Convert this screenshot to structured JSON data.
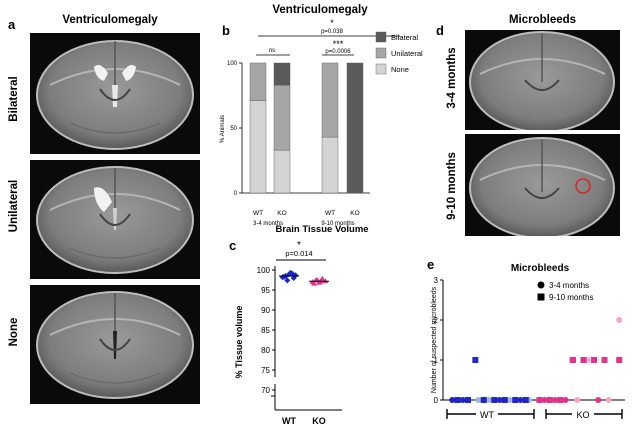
{
  "panels": {
    "a": {
      "letter": "a",
      "title": "Ventriculomegaly",
      "rows": [
        "Bilateral",
        "Unilateral",
        "None"
      ]
    },
    "b": {
      "letter": "b",
      "title": "Ventriculomegaly",
      "sig": {
        "top_star": "*",
        "top_p": "p=0.038",
        "ns": "ns",
        "stars": "***",
        "p_right": "p=0.0006"
      },
      "group_labels": [
        "3-4 months",
        "9-10 months"
      ]
    },
    "c": {
      "letter": "c",
      "title": "Brain Tissue Volume",
      "star": "*",
      "p": "p=0.014"
    },
    "d": {
      "letter": "d",
      "title": "Microbleeds",
      "rows": [
        "3-4 months",
        "9-10 months"
      ]
    },
    "e": {
      "letter": "e",
      "title": "Microbleeds",
      "legend": [
        "3-4 months",
        "9-10 months"
      ],
      "group_labels": [
        "WT",
        "KO"
      ]
    }
  },
  "colors": {
    "bilateral": "#5a5a5a",
    "unilateral": "#a6a6a6",
    "none": "#d4d4d4",
    "wt": "#1f27c8",
    "ko": "#e0338a",
    "ko_light": "#f5a6c8",
    "wt_light": "#9fb6de",
    "circle": "#d9262c"
  },
  "chart_data": [
    {
      "id": "b",
      "type": "bar",
      "stacked": true,
      "categories": [
        "WT",
        "KO",
        "WT",
        "KO"
      ],
      "group_labels": [
        "3-4 months",
        "9-10 months"
      ],
      "ylabel": "% Animals",
      "ylim": [
        0,
        100
      ],
      "yticks": [
        "0",
        "50",
        "100"
      ],
      "series": [
        {
          "name": "None",
          "values": [
            71,
            33,
            43,
            0
          ]
        },
        {
          "name": "Unilateral",
          "values": [
            29,
            50,
            57,
            0
          ]
        },
        {
          "name": "Bilateral",
          "values": [
            0,
            17,
            0,
            100
          ]
        }
      ]
    },
    {
      "id": "c",
      "type": "scatter",
      "categories": [
        "WT",
        "KO"
      ],
      "ylabel": "% Tissue volume",
      "ylim": [
        70,
        100
      ],
      "yticks": [
        "70",
        "75",
        "80",
        "85",
        "90",
        "95",
        "100"
      ],
      "series": [
        {
          "name": "WT",
          "values": [
            98.2,
            98.5,
            98.9,
            99.1,
            98.7,
            98.3,
            97.4,
            99.3,
            98.0
          ]
        },
        {
          "name": "KO",
          "values": [
            97.0,
            97.4,
            96.8,
            97.8,
            97.2,
            96.6,
            97.5,
            97.1
          ]
        }
      ],
      "means": [
        98.5,
        97.2
      ]
    },
    {
      "id": "e",
      "type": "scatter",
      "ylabel": "Number of suspected microbleeds",
      "ylim": [
        0,
        3
      ],
      "yticks": [
        "0",
        "1",
        "2",
        "3"
      ],
      "series": [
        {
          "name": "3-4 months",
          "points": [
            [
              0.5,
              0,
              "wt"
            ],
            [
              1.5,
              0,
              "wt"
            ],
            [
              3.0,
              0,
              "wt_light"
            ],
            [
              4.0,
              0,
              "wt_light"
            ],
            [
              5.0,
              0,
              "wt"
            ],
            [
              6.0,
              0,
              "wt_light"
            ],
            [
              7.0,
              0,
              "wt"
            ],
            [
              7.8,
              0,
              "wt_light"
            ],
            [
              9.3,
              0,
              "ko"
            ],
            [
              10.3,
              0,
              "ko"
            ],
            [
              11.3,
              0,
              "ko"
            ],
            [
              11.9,
              1,
              "ko_light"
            ],
            [
              12.4,
              0,
              "ko_light"
            ],
            [
              13.4,
              1,
              "ko_light"
            ],
            [
              14.4,
              0,
              "ko"
            ],
            [
              15.4,
              0,
              "ko_light"
            ],
            [
              16.4,
              2,
              "ko_light"
            ]
          ]
        },
        {
          "name": "9-10 months",
          "points": [
            [
              1.0,
              0,
              "wt"
            ],
            [
              2.0,
              0,
              "wt"
            ],
            [
              2.7,
              1,
              "wt"
            ],
            [
              3.5,
              0,
              "wt"
            ],
            [
              4.5,
              0,
              "wt"
            ],
            [
              5.5,
              0,
              "wt"
            ],
            [
              6.5,
              0,
              "wt"
            ],
            [
              7.5,
              0,
              "wt"
            ],
            [
              8.8,
              0,
              "ko"
            ],
            [
              9.8,
              0,
              "ko"
            ],
            [
              10.8,
              0,
              "ko"
            ],
            [
              12.0,
              1,
              "ko"
            ],
            [
              13.0,
              1,
              "ko"
            ],
            [
              14.0,
              1,
              "ko"
            ],
            [
              15.0,
              1,
              "ko"
            ],
            [
              16.4,
              1,
              "ko"
            ]
          ]
        }
      ]
    }
  ]
}
